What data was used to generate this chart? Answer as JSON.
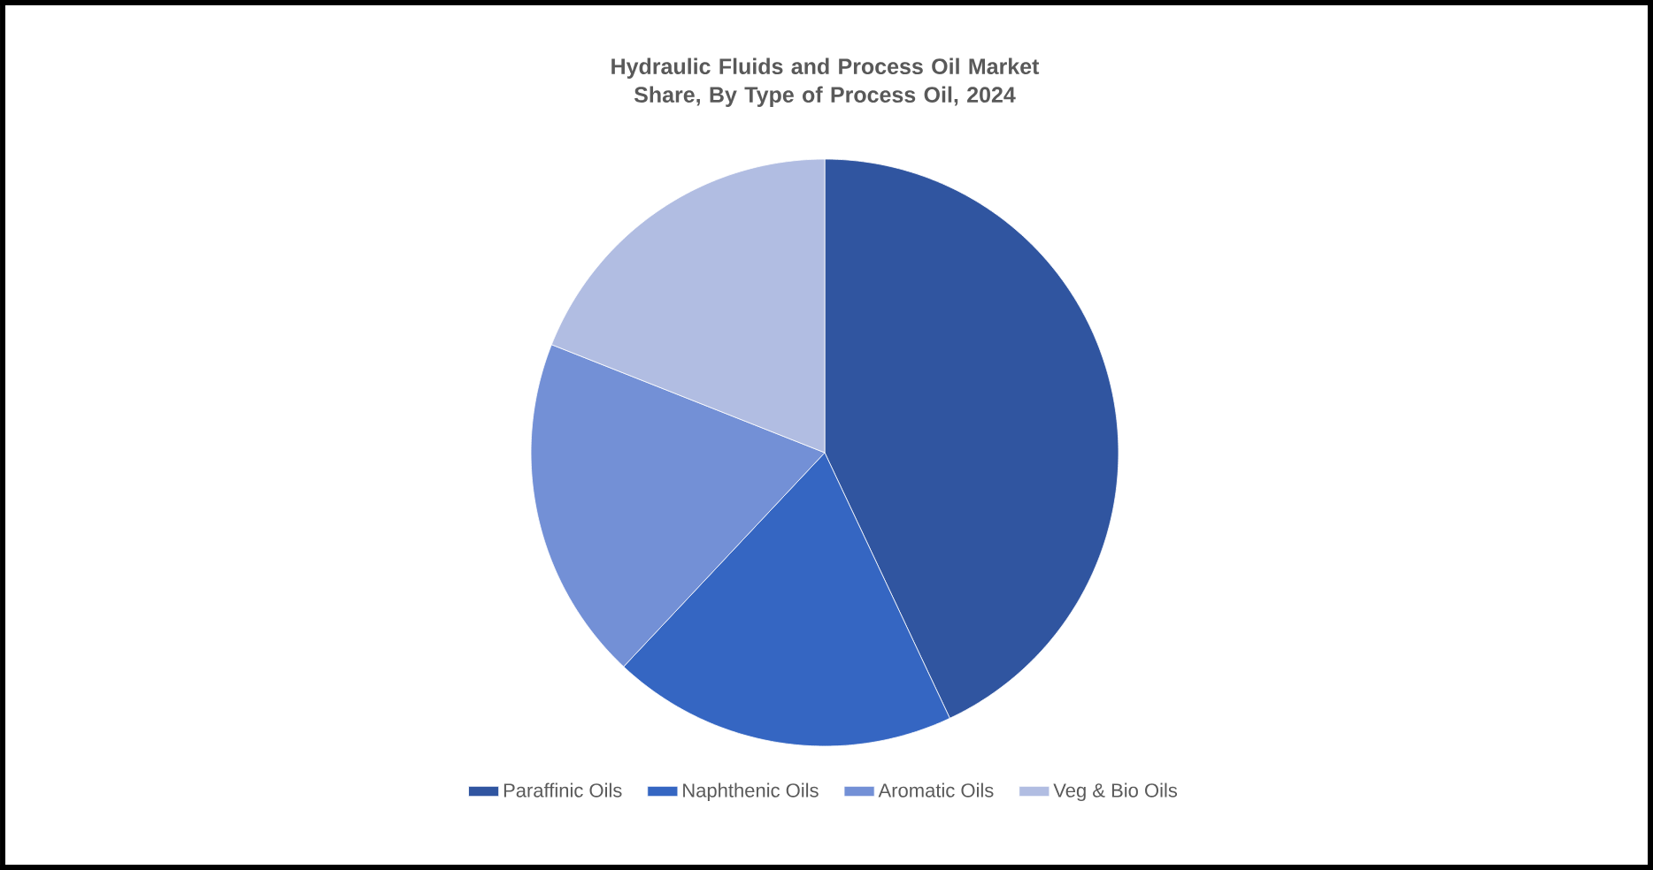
{
  "chart_data": {
    "type": "pie",
    "title": "Hydraulic Fluids and Process Oil Market Share, By Type of Process Oil, 2024",
    "categories": [
      "Paraffinic Oils",
      "Naphthenic Oils",
      "Aromatic Oils",
      "Veg & Bio Oils"
    ],
    "values": [
      43,
      19,
      19,
      19
    ],
    "colors": [
      "#3055a0",
      "#3566c2",
      "#7390d6",
      "#b1bde2"
    ],
    "legend": "bottom"
  }
}
